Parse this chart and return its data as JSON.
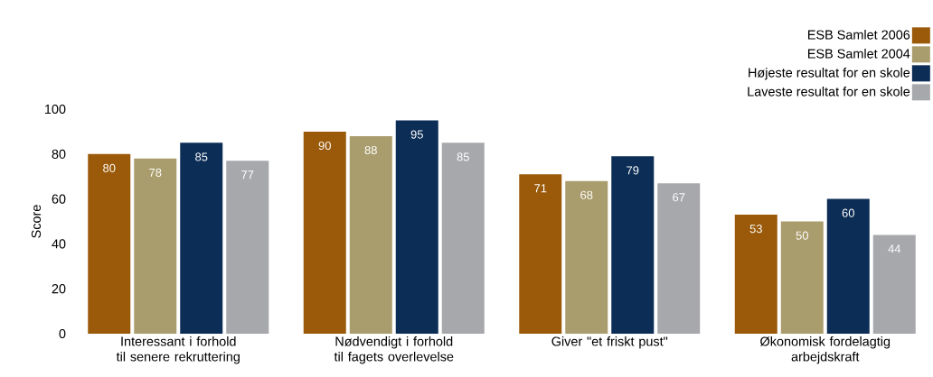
{
  "chart_data": {
    "type": "bar",
    "ylabel": "Score",
    "categories": [
      "Interessant i forhold til senere rekruttering",
      "Nødvendigt i forhold til fagets overlevelse",
      "Giver \"et friskt pust\"",
      "Økonomisk fordelagtig arbejdskraft"
    ],
    "series": [
      {
        "name": "ESB Samlet 2006",
        "color": "#9a5a0a",
        "values": [
          80,
          90,
          71,
          53
        ]
      },
      {
        "name": "ESB Samlet 2004",
        "color": "#aa9d6d",
        "values": [
          78,
          88,
          68,
          50
        ]
      },
      {
        "name": "Højeste resultat for en skole",
        "color": "#0c2d56",
        "values": [
          85,
          95,
          79,
          60
        ]
      },
      {
        "name": "Laveste resultat for en skole",
        "color": "#a7a8ac",
        "values": [
          77,
          85,
          67,
          44
        ]
      }
    ],
    "ylim": [
      0,
      100
    ],
    "yticks": [
      0,
      20,
      40,
      60,
      80,
      100
    ],
    "data_labels": true,
    "legend": "top right",
    "grid": false
  }
}
